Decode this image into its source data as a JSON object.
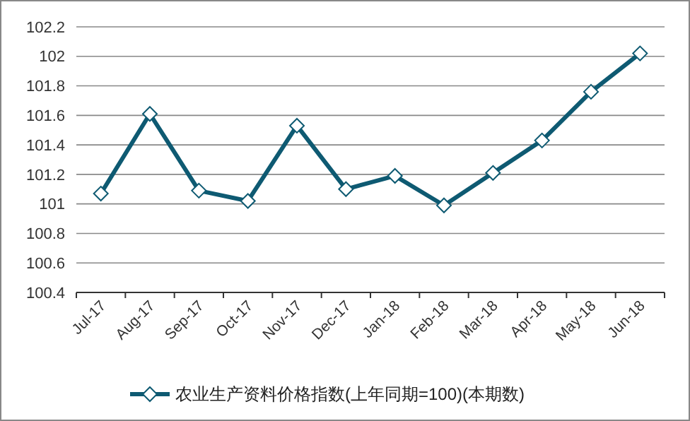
{
  "chart_data": {
    "type": "line",
    "categories": [
      "Jul-17",
      "Aug-17",
      "Sep-17",
      "Oct-17",
      "Nov-17",
      "Dec-17",
      "Jan-18",
      "Feb-18",
      "Mar-18",
      "Apr-18",
      "May-18",
      "Jun-18"
    ],
    "series": [
      {
        "name": "农业生产资料价格指数(上年同期=100)(本期数)",
        "color": "#0e5a72",
        "values": [
          101.07,
          101.61,
          101.09,
          101.02,
          101.53,
          101.1,
          101.19,
          100.99,
          101.21,
          101.43,
          101.76,
          102.02
        ]
      }
    ],
    "ylim": [
      100.4,
      102.2
    ],
    "yticks": [
      100.4,
      100.6,
      100.8,
      101,
      101.2,
      101.4,
      101.6,
      101.8,
      102,
      102.2
    ],
    "grid": "y",
    "legend": "bottom",
    "marker": "diamond",
    "line_style": "solid"
  }
}
